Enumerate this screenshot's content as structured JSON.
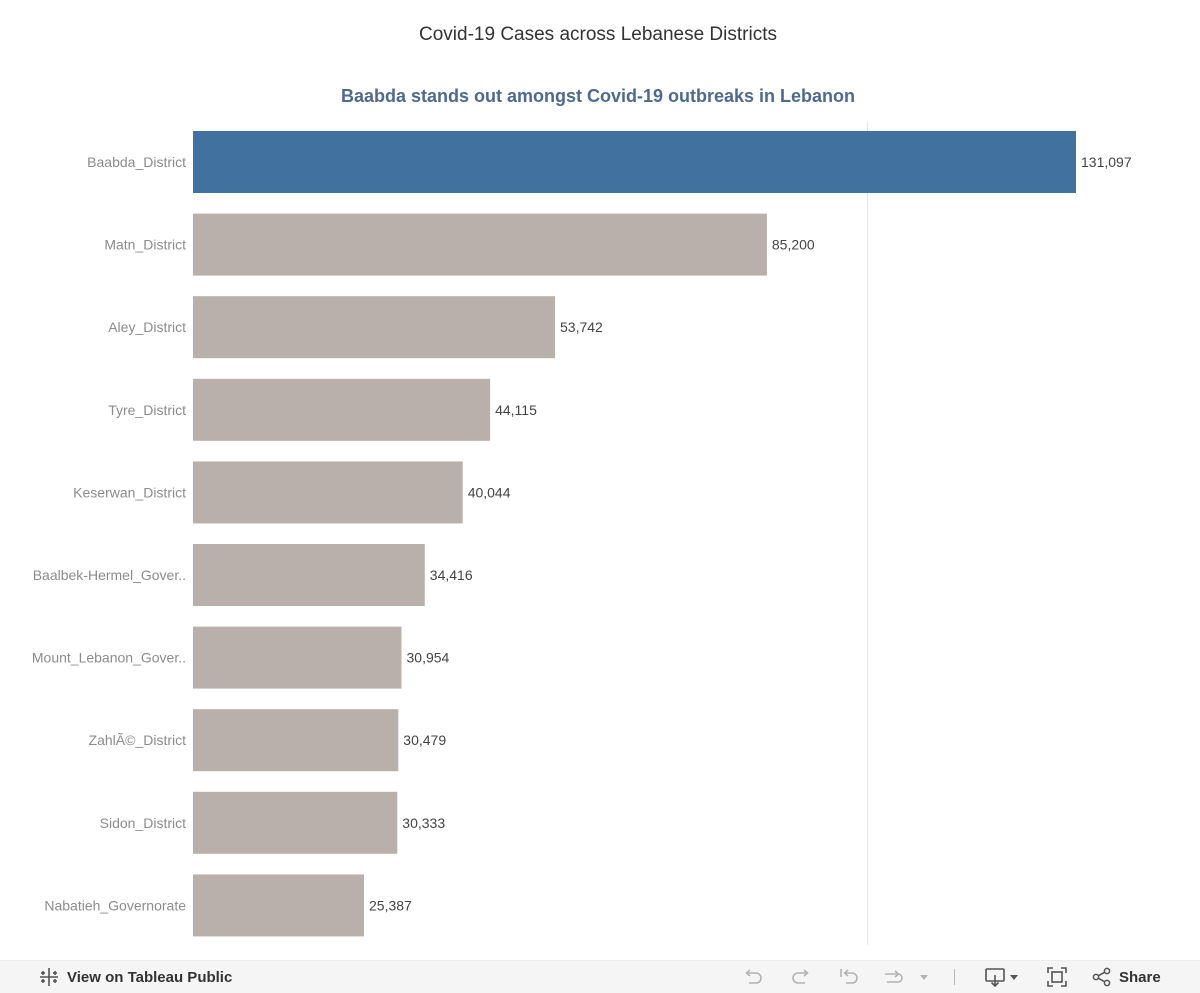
{
  "dashboard": {
    "title": "Covid-19 Cases across Lebanese Districts"
  },
  "chart_data": {
    "type": "bar",
    "orientation": "horizontal",
    "title": "Baabda stands out amongst Covid-19 outbreaks in Lebanon",
    "categories": [
      "Baabda_District",
      "Matn_District",
      "Aley_District",
      "Tyre_District",
      "Keserwan_District",
      "Baalbek-Hermel_Gover..",
      "Mount_Lebanon_Gover..",
      "ZahlÃ©_District",
      "Sidon_District",
      "Nabatieh_Governorate"
    ],
    "values": [
      131097,
      85200,
      53742,
      44115,
      40044,
      34416,
      30954,
      30479,
      30333,
      25387
    ],
    "value_labels": [
      "131,097",
      "85,200",
      "53,742",
      "44,115",
      "40,044",
      "34,416",
      "30,954",
      "30,479",
      "30,333",
      "25,387"
    ],
    "highlight_category": "Baabda_District",
    "colors": {
      "highlight": "#41719f",
      "default": "#bab0ab",
      "reference_line": "#e6e6e6"
    },
    "xlim": [
      0,
      131097
    ],
    "grid": false,
    "xlabel": "",
    "ylabel": ""
  },
  "toolbar": {
    "view_on_label": "View on Tableau Public",
    "share_label": "Share",
    "icons": [
      "tableau-logo-icon",
      "undo-icon",
      "redo-icon",
      "revert-icon",
      "refresh-icon",
      "pause-dropdown-icon",
      "download-icon",
      "fullscreen-icon",
      "share-icon"
    ]
  }
}
